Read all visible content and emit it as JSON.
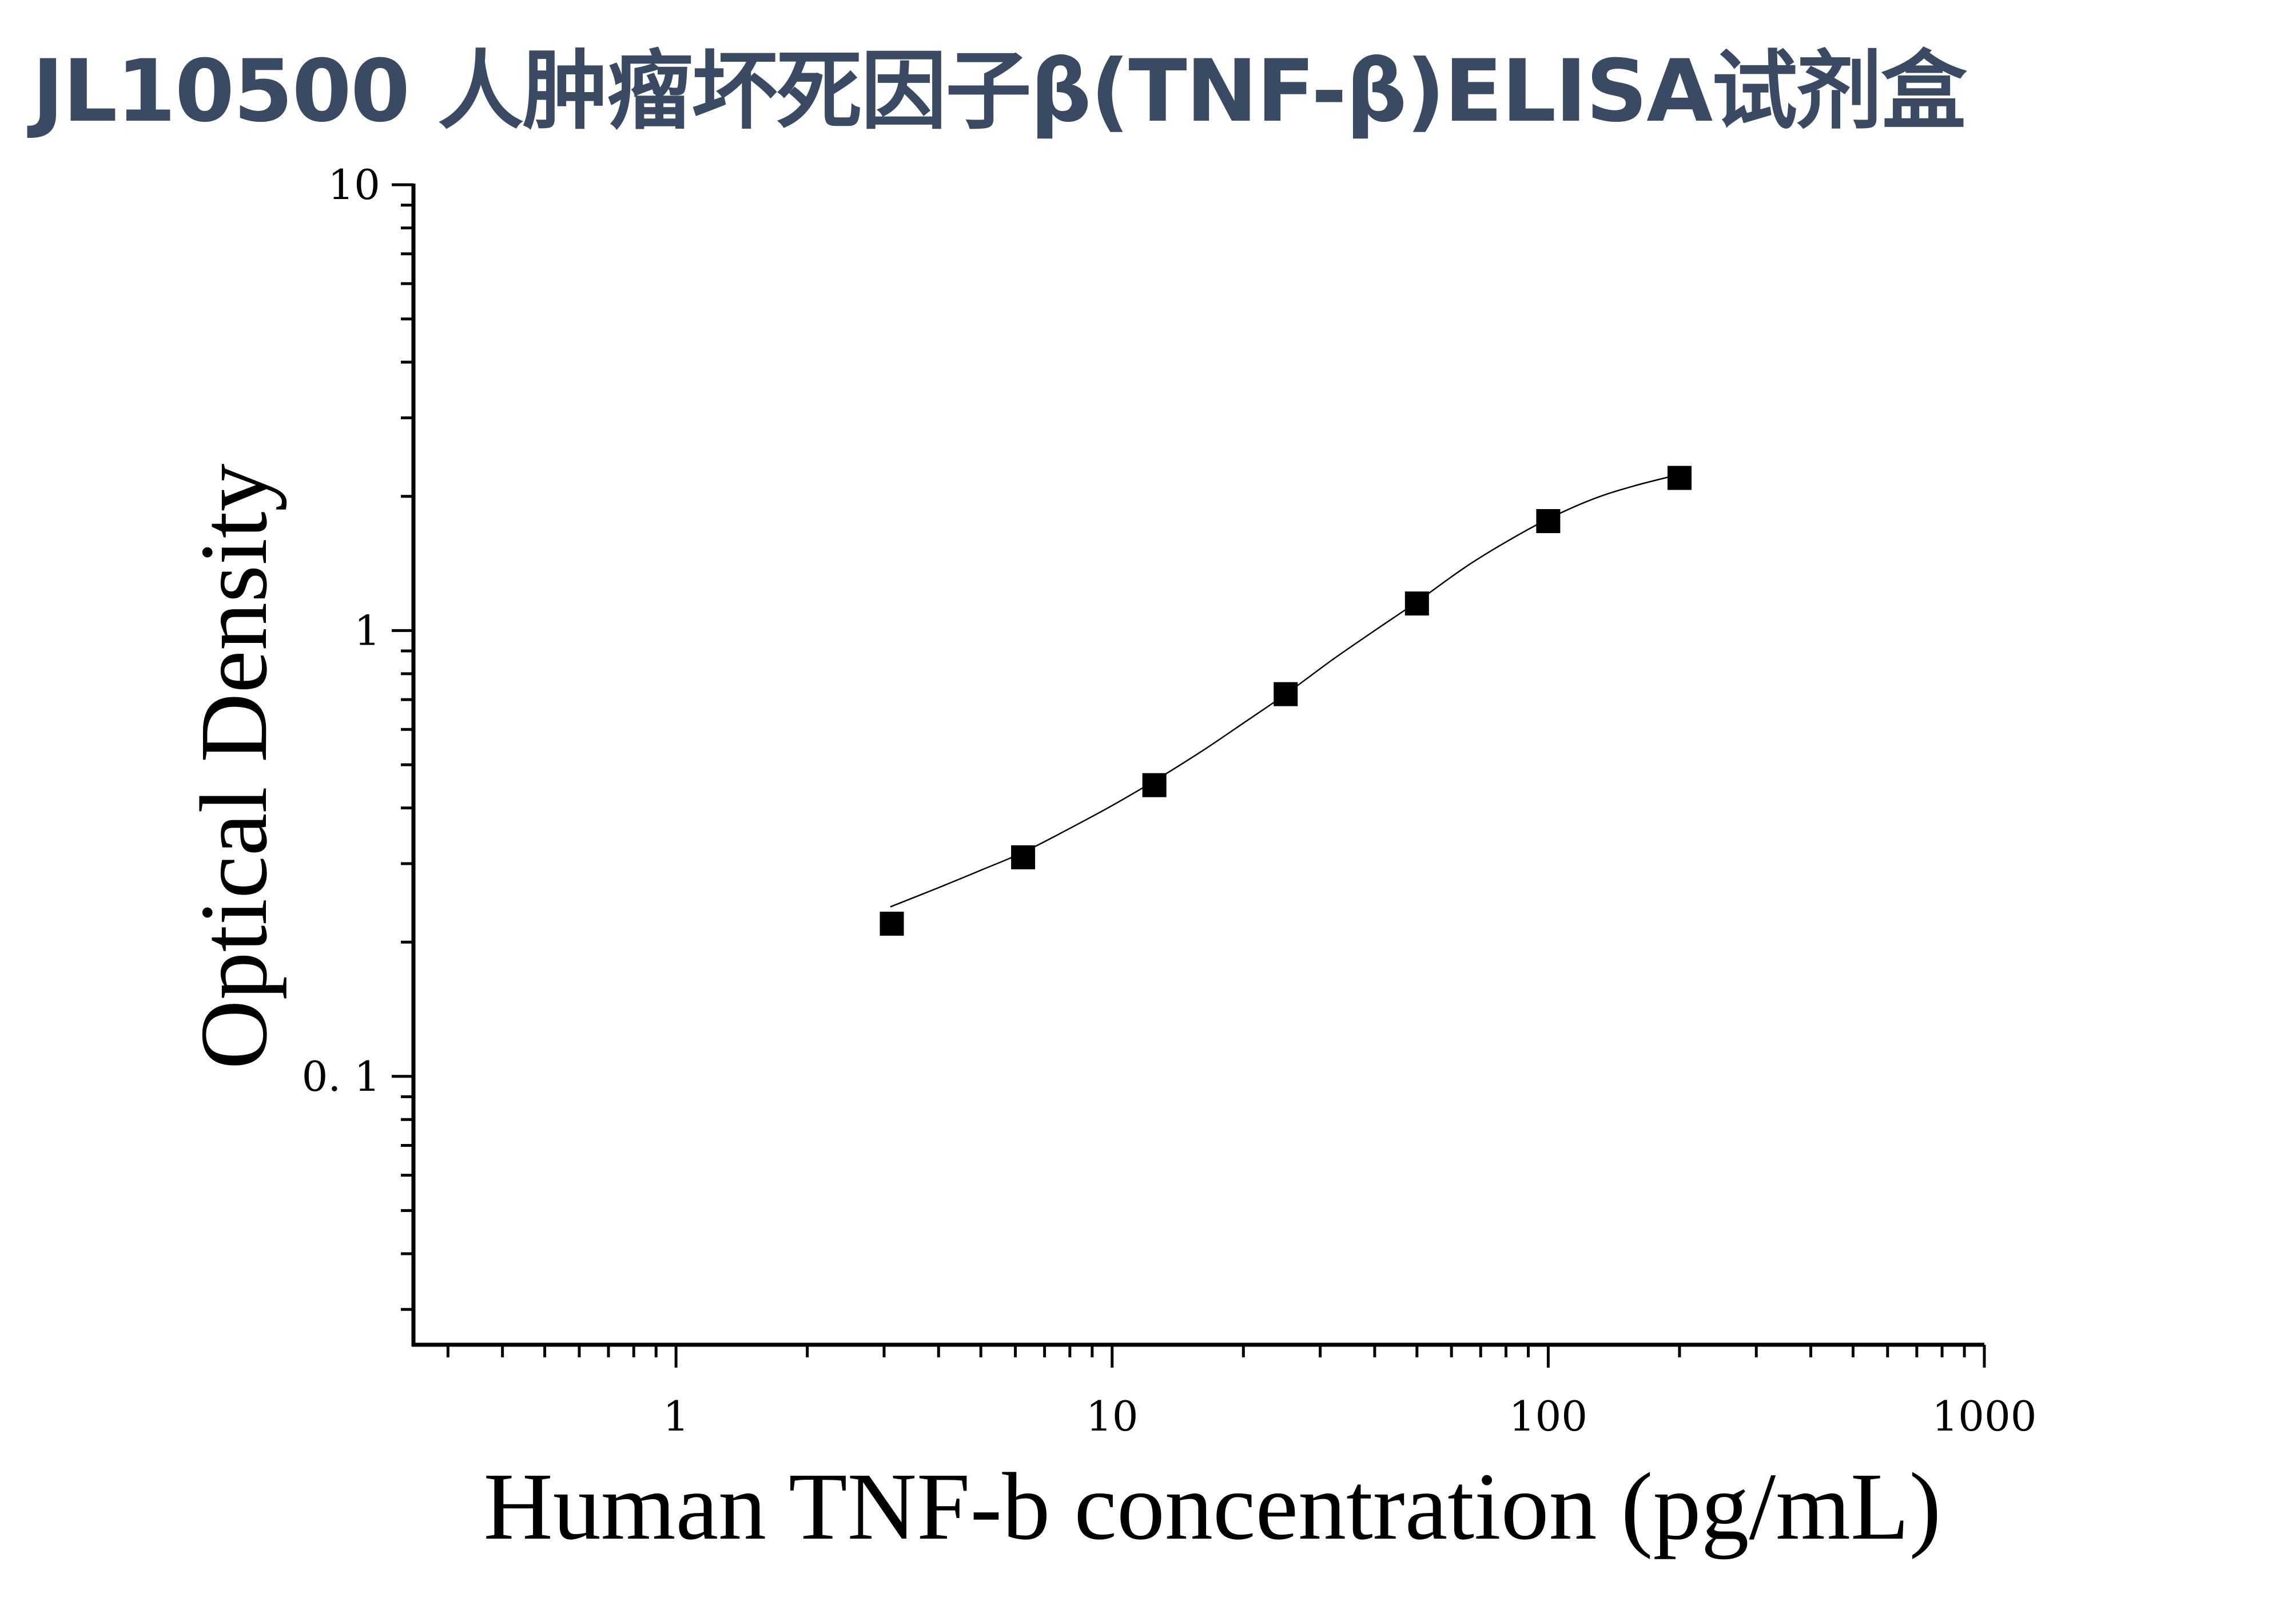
{
  "title": "JL10500 人肿瘤坏死因子β(TNF-β)ELISA试剂盒",
  "chart_data": {
    "type": "scatter",
    "x_scale": "log",
    "y_scale": "log",
    "xlabel": "Human TNF-b concentration (pg/mL)",
    "ylabel": "Optical Density",
    "xlim": [
      0.25,
      1000
    ],
    "ylim": [
      0.025,
      10
    ],
    "x_ticks": [
      1,
      10,
      100,
      1000
    ],
    "x_tick_labels": [
      "1",
      "10",
      "100",
      "1000"
    ],
    "y_ticks": [
      0.1,
      1,
      10
    ],
    "y_tick_labels": [
      "0. 1",
      "1",
      "10"
    ],
    "grid": false,
    "series": [
      {
        "x": [
          3.125,
          6.25,
          12.5,
          25,
          50,
          100,
          200
        ],
        "y": [
          0.22,
          0.31,
          0.45,
          0.72,
          1.15,
          1.76,
          2.2
        ]
      }
    ],
    "fit_curve": {
      "x": [
        3.1,
        4,
        5,
        6.25,
        8,
        10,
        12.5,
        16,
        20,
        25,
        32,
        40,
        50,
        64,
        80,
        100,
        128,
        160,
        200
      ],
      "y": [
        0.24,
        0.265,
        0.29,
        0.318,
        0.36,
        0.405,
        0.46,
        0.535,
        0.62,
        0.72,
        0.86,
        1.0,
        1.16,
        1.38,
        1.58,
        1.78,
        1.98,
        2.12,
        2.24
      ]
    },
    "marker": "square",
    "color": "#000000"
  }
}
